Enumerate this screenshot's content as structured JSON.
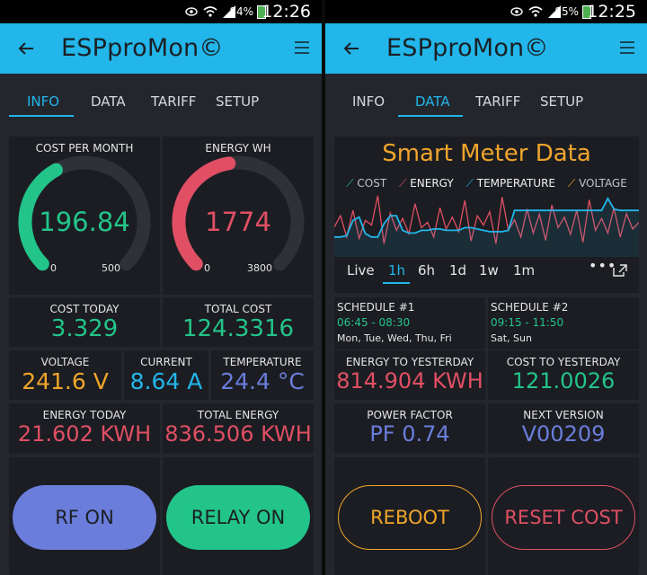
{
  "left": {
    "status": {
      "battery": "84%",
      "time": "12:26"
    },
    "app_title": "ESPproMon©",
    "tabs": [
      "INFO",
      "DATA",
      "TARIFF",
      "SETUP"
    ],
    "active_tab": "INFO",
    "cost_per_month": {
      "label": "COST PER MONTH",
      "value": "196.84",
      "min": "0",
      "max": "500",
      "level": 0.394,
      "color": "#23c489"
    },
    "energy_wh": {
      "label": "ENERGY WH",
      "value": "1774",
      "min": "0",
      "max": "3800",
      "level": 0.467,
      "color": "#e04f64"
    },
    "cost_today": {
      "label": "COST TODAY",
      "value": "3.329",
      "color": "#23c489"
    },
    "total_cost": {
      "label": "TOTAL COST",
      "value": "124.3316",
      "color": "#23c489"
    },
    "voltage": {
      "label": "VOLTAGE",
      "value": "241.6 V",
      "color": "#f0a52b"
    },
    "current": {
      "label": "CURRENT",
      "value": "8.64 A",
      "color": "#22b6ea"
    },
    "temperature": {
      "label": "TEMPERATURE",
      "value": "24.4 °C",
      "color": "#6a7ddb"
    },
    "energy_today": {
      "label": "ENERGY TODAY",
      "value": "21.602 KWH",
      "color": "#e04f64"
    },
    "total_energy": {
      "label": "TOTAL ENERGY",
      "value": "836.506 KWH",
      "color": "#e04f64"
    },
    "rf_button": {
      "label": "RF ON",
      "color": "#6a7ddb"
    },
    "relay_button": {
      "label": "RELAY ON",
      "color": "#23c489"
    }
  },
  "right": {
    "status": {
      "battery": "85%",
      "time": "12:25"
    },
    "app_title": "ESPproMon©",
    "tabs": [
      "INFO",
      "DATA",
      "TARIFF",
      "SETUP"
    ],
    "active_tab": "DATA",
    "chart_title": "Smart Meter Data",
    "legend": [
      {
        "name": "COST",
        "color": "#23c489"
      },
      {
        "name": "ENERGY",
        "color": "#e04f64"
      },
      {
        "name": "TEMPERATURE",
        "color": "#22b6ea"
      },
      {
        "name": "VOLTAGE",
        "color": "#f0a52b"
      }
    ],
    "periods": [
      "Live",
      "1h",
      "6h",
      "1d",
      "1w",
      "1m"
    ],
    "active_period": "1h",
    "schedule1": {
      "label": "SCHEDULE #1",
      "time": "06:45 - 08:30",
      "days": "Mon, Tue, Wed, Thu, Fri"
    },
    "schedule2": {
      "label": "SCHEDULE #2",
      "time": "09:15 - 11:50",
      "days": "Sat, Sun"
    },
    "energy_to_yesterday": {
      "label": "ENERGY TO YESTERDAY",
      "value": "814.904 KWH",
      "color": "#e04f64"
    },
    "cost_to_yesterday": {
      "label": "COST TO YESTERDAY",
      "value": "121.0026",
      "color": "#23c489"
    },
    "power_factor": {
      "label": "POWER FACTOR",
      "value": "PF 0.74",
      "color": "#6a7ddb"
    },
    "next_version": {
      "label": "NEXT VERSION",
      "value": "V00209",
      "color": "#6a7ddb"
    },
    "reboot_button": {
      "label": "REBOOT",
      "color": "#f0a52b"
    },
    "reset_button": {
      "label": "RESET COST",
      "color": "#e04f64"
    }
  },
  "chart_data": {
    "type": "line",
    "title": "Smart Meter Data",
    "series": [
      {
        "name": "ENERGY",
        "values": [
          0.45,
          0.62,
          0.3,
          0.7,
          0.28,
          0.55,
          0.48,
          0.92,
          0.2,
          0.66,
          0.4,
          0.58,
          0.35,
          0.8,
          0.44,
          0.52,
          0.3,
          0.74,
          0.42,
          0.6,
          0.38,
          0.85,
          0.24,
          0.62,
          0.48,
          0.68,
          0.2,
          0.9,
          0.4,
          0.56,
          0.3,
          0.72,
          0.36,
          0.64,
          0.25,
          0.78,
          0.44,
          0.6,
          0.34,
          0.7,
          0.22,
          0.86,
          0.4,
          0.58,
          0.36,
          0.74,
          0.3,
          0.65,
          0.42,
          0.52
        ]
      },
      {
        "name": "TEMPERATURE",
        "values": [
          0.3,
          0.3,
          0.32,
          0.55,
          0.6,
          0.35,
          0.3,
          0.3,
          0.5,
          0.62,
          0.62,
          0.4,
          0.36,
          0.36,
          0.4,
          0.4,
          0.42,
          0.42,
          0.4,
          0.4,
          0.4,
          0.44,
          0.44,
          0.42,
          0.4,
          0.38,
          0.38,
          0.38,
          0.4,
          0.7,
          0.7,
          0.7,
          0.7,
          0.7,
          0.7,
          0.7,
          0.7,
          0.7,
          0.7,
          0.7,
          0.7,
          0.7,
          0.7,
          0.7,
          0.88,
          0.72,
          0.7,
          0.7,
          0.7,
          0.7
        ]
      }
    ]
  }
}
